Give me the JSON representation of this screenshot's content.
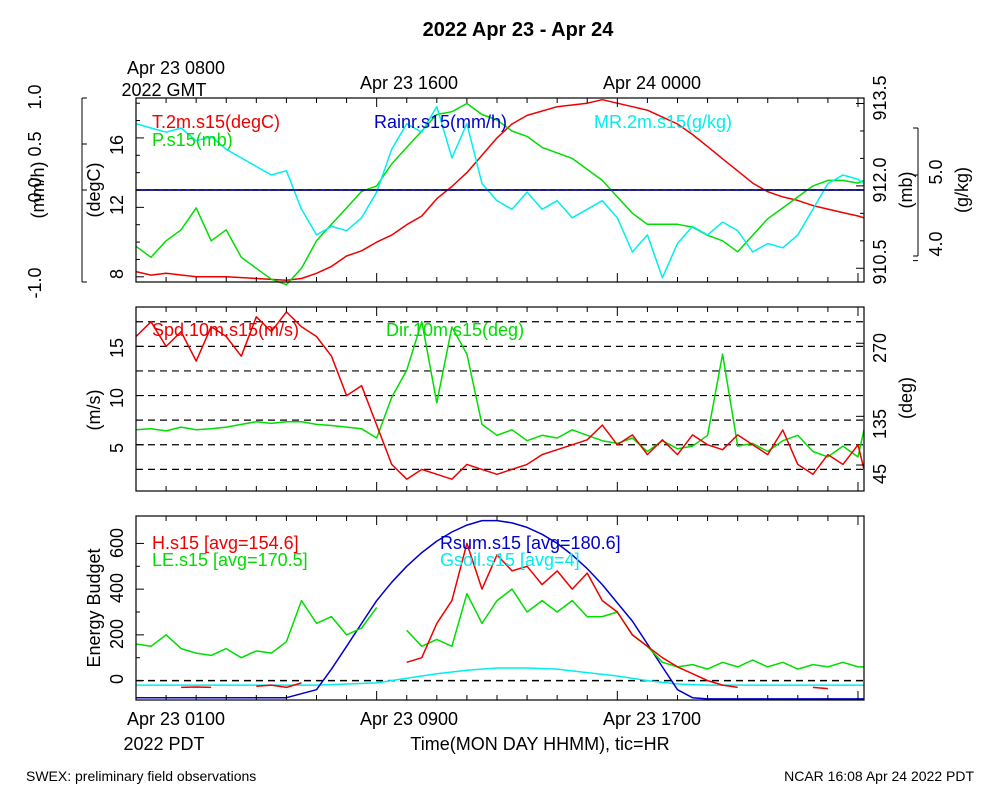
{
  "title": "2022 Apr 23 - Apr 24",
  "footer": {
    "left": "SWEX: preliminary field observations",
    "right": "NCAR 16:08 Apr 24 2022 PDT"
  },
  "time_axis": {
    "gmt_ticks": [
      {
        "hour": 0,
        "label": "Apr 23 0800"
      },
      {
        "hour": 8,
        "label": "Apr 23 1600"
      },
      {
        "hour": 16,
        "label": "Apr 24 0000"
      }
    ],
    "gmt_year_label": "2022 GMT",
    "pdt_ticks": [
      {
        "hour": 0,
        "label": "Apr 23 0100"
      },
      {
        "hour": 8,
        "label": "Apr 23 0900"
      },
      {
        "hour": 16,
        "label": "Apr 23 1700"
      }
    ],
    "pdt_year_label": "2022 PDT",
    "xlabel": "Time(MON DAY HHMM), tic=HR",
    "range_hours": [
      0,
      24.2
    ]
  },
  "colors": {
    "red": "#ee0000",
    "green": "#00dd00",
    "cyan": "#00eeee",
    "blue": "#0000cc",
    "black": "#000000"
  },
  "chart_data": [
    {
      "type": "line",
      "panel": "top",
      "axes": {
        "left_outer": {
          "label": "(mm/h)",
          "ticks": [
            "-1.0",
            "0.0",
            "0.5",
            "1.0"
          ],
          "ylim": [
            -1.0,
            1.0
          ]
        },
        "left_inner": {
          "label": "(degC)",
          "ticks": [
            "8",
            "12",
            "16"
          ],
          "ylim": [
            7.7,
            18.3
          ]
        },
        "right_inner": {
          "label": "(mb)",
          "ticks": [
            "910.5",
            "912.0",
            "913.5"
          ],
          "ylim": [
            910.25,
            913.6
          ]
        },
        "right_outer": {
          "label": "(g/kg)",
          "ticks": [
            "4.0",
            "5.0"
          ],
          "ylim": [
            3.75,
            5.9
          ]
        }
      },
      "series": [
        {
          "name": "T.2m.s15(degC)",
          "color": "red",
          "axis": "left_inner",
          "x": [
            0,
            0.5,
            1,
            2,
            3,
            4,
            5,
            5.5,
            6,
            6.5,
            7,
            7.5,
            8,
            8.5,
            9,
            9.5,
            10,
            10.5,
            11,
            11.5,
            12,
            12.5,
            13,
            14,
            15,
            15.5,
            16,
            16.5,
            17,
            17.5,
            18,
            18.5,
            19,
            19.5,
            20,
            20.5,
            21,
            21.5,
            22,
            22.5,
            23,
            23.5,
            24,
            24.2
          ],
          "y": [
            8.3,
            8.1,
            8.2,
            8.0,
            8.0,
            7.9,
            7.8,
            7.9,
            8.2,
            8.6,
            9.2,
            9.5,
            10.0,
            10.4,
            11.0,
            11.5,
            12.5,
            13.2,
            14.0,
            15.0,
            16.0,
            16.8,
            17.3,
            17.8,
            18.0,
            18.2,
            18.0,
            17.8,
            17.6,
            17.2,
            16.8,
            16.2,
            15.5,
            14.8,
            14.1,
            13.4,
            12.9,
            12.6,
            12.4,
            12.1,
            11.9,
            11.7,
            11.5,
            11.4
          ]
        },
        {
          "name": "Rainr.s15(mm/h)",
          "color": "blue",
          "axis": "left_outer",
          "x": [
            0,
            24.2
          ],
          "y": [
            0.0,
            0.0
          ]
        },
        {
          "name": "MR.2m.s15(g/kg)",
          "color": "cyan",
          "axis": "right_outer",
          "x": [
            0,
            0.5,
            1,
            1.5,
            2,
            2.5,
            3,
            3.5,
            4,
            4.5,
            5,
            5.5,
            6,
            6.5,
            7,
            7.5,
            8,
            8.5,
            9,
            9.5,
            10,
            10.5,
            11,
            11.5,
            12,
            12.5,
            13,
            13.5,
            14,
            14.5,
            15,
            15.5,
            16,
            16.5,
            17,
            17.5,
            18,
            18.5,
            19,
            19.5,
            20,
            20.5,
            21,
            21.5,
            22,
            22.5,
            23,
            23.5,
            24,
            24.2
          ],
          "y": [
            5.6,
            5.55,
            5.5,
            5.55,
            5.4,
            5.45,
            5.3,
            5.2,
            5.1,
            5.0,
            5.05,
            4.6,
            4.3,
            4.4,
            4.35,
            4.5,
            4.8,
            5.3,
            5.6,
            5.5,
            5.8,
            5.2,
            5.6,
            4.9,
            4.7,
            4.6,
            4.8,
            4.6,
            4.7,
            4.5,
            4.6,
            4.7,
            4.5,
            4.1,
            4.3,
            3.8,
            4.2,
            4.4,
            4.3,
            4.45,
            4.35,
            4.1,
            4.2,
            4.15,
            4.3,
            4.6,
            4.9,
            5.0,
            4.95,
            4.9
          ]
        },
        {
          "name": "P.s15(mb)",
          "color": "green",
          "axis": "right_inner",
          "x": [
            0,
            0.5,
            1,
            1.5,
            2,
            2.5,
            3,
            3.5,
            4,
            4.5,
            5,
            5.5,
            6,
            6.5,
            7,
            7.5,
            8,
            8.5,
            9,
            9.5,
            10,
            10.5,
            11,
            11.5,
            12,
            12.5,
            13,
            13.5,
            14,
            14.5,
            15,
            15.5,
            16,
            16.5,
            17,
            17.5,
            18,
            18.5,
            19,
            19.5,
            20,
            20.5,
            21,
            21.5,
            22,
            22.5,
            23,
            23.5,
            24,
            24.2
          ],
          "y": [
            910.9,
            910.7,
            911.0,
            911.2,
            911.6,
            911.0,
            911.2,
            910.7,
            910.5,
            910.3,
            910.2,
            910.5,
            911.0,
            911.3,
            911.6,
            911.9,
            912.0,
            912.4,
            912.7,
            913.0,
            913.3,
            913.35,
            913.5,
            913.3,
            913.2,
            913.0,
            912.9,
            912.7,
            912.6,
            912.5,
            912.3,
            912.1,
            911.8,
            911.5,
            911.3,
            911.3,
            911.3,
            911.25,
            911.1,
            911.0,
            910.8,
            911.1,
            911.4,
            911.6,
            911.8,
            912.0,
            912.1,
            912.1,
            912.05,
            912.1
          ]
        }
      ]
    },
    {
      "type": "line",
      "panel": "middle",
      "axes": {
        "left": {
          "label": "(m/s)",
          "ticks": [
            "5",
            "10",
            "15"
          ],
          "ylim": [
            0.3,
            19.0
          ]
        },
        "right": {
          "label": "(deg)",
          "ticks": [
            "45",
            "135",
            "270"
          ],
          "ylim": [
            -3,
            337
          ]
        }
      },
      "grid": "dashed",
      "series": [
        {
          "name": "Spd.10m.s15(m/s)",
          "color": "red",
          "axis": "left",
          "x": [
            0,
            0.5,
            1,
            1.5,
            2,
            2.5,
            3,
            3.5,
            4,
            4.5,
            5,
            5.5,
            6,
            6.5,
            7,
            7.5,
            8,
            8.5,
            9,
            9.5,
            10,
            10.5,
            11,
            11.5,
            12,
            12.5,
            13,
            13.5,
            14,
            14.5,
            15,
            15.5,
            16,
            16.5,
            17,
            17.5,
            18,
            18.5,
            19,
            19.5,
            20,
            20.5,
            21,
            21.5,
            22,
            22.5,
            23,
            23.5,
            24,
            24.2
          ],
          "y": [
            16.0,
            17.5,
            15.0,
            16.5,
            13.5,
            17.0,
            16.0,
            14.0,
            18.0,
            16.5,
            18.5,
            17.0,
            16.0,
            14.0,
            10.0,
            11.0,
            7.0,
            3.0,
            1.5,
            2.5,
            2.0,
            1.5,
            3.0,
            2.5,
            2.0,
            2.5,
            3.0,
            4.0,
            4.5,
            5.0,
            5.5,
            7.0,
            5.0,
            6.0,
            4.0,
            5.5,
            4.0,
            6.0,
            5.0,
            4.5,
            6.0,
            5.0,
            4.0,
            6.5,
            3.0,
            2.0,
            4.0,
            3.0,
            5.0,
            2.5
          ]
        },
        {
          "name": "Dir.10m.s15(deg)",
          "color": "green",
          "axis": "right",
          "x": [
            0,
            0.5,
            1,
            1.5,
            2,
            2.5,
            3,
            3.5,
            4,
            4.5,
            5,
            5.5,
            6,
            6.5,
            7,
            7.5,
            8,
            8.5,
            9,
            9.5,
            10,
            10.5,
            11,
            11.5,
            12,
            12.5,
            13,
            13.5,
            14,
            14.5,
            15,
            15.5,
            16,
            16.5,
            17,
            17.5,
            18,
            18.5,
            19,
            19.5,
            20,
            20.5,
            21,
            21.5,
            22,
            22.5,
            23,
            23.5,
            24,
            24.2
          ],
          "y": [
            110,
            112,
            108,
            115,
            110,
            112,
            115,
            120,
            125,
            122,
            125,
            125,
            120,
            118,
            115,
            112,
            95,
            170,
            220,
            310,
            160,
            300,
            250,
            120,
            100,
            110,
            90,
            100,
            95,
            110,
            100,
            90,
            85,
            95,
            70,
            90,
            75,
            80,
            100,
            250,
            80,
            85,
            70,
            90,
            100,
            70,
            60,
            80,
            60,
            110
          ]
        }
      ]
    },
    {
      "type": "line",
      "panel": "bottom",
      "axes": {
        "left": {
          "label": "Energy Budget",
          "ticks": [
            "0",
            "200",
            "400",
            "600"
          ],
          "ylim": [
            -85,
            720
          ]
        }
      },
      "series": [
        {
          "name": "H.s15 [avg=154.6]",
          "color": "red",
          "x": [
            1.5,
            2.0,
            2.5,
            null,
            4.0,
            4.5,
            5.0,
            5.5,
            null,
            9.0,
            9.5,
            10.0,
            10.5,
            11.0,
            11.5,
            12.0,
            12.5,
            13.0,
            13.5,
            14.0,
            14.5,
            15.0,
            15.5,
            16.0,
            16.5,
            17.0,
            17.5,
            18.0,
            18.5,
            19.0,
            19.5,
            20.0,
            null,
            22.5,
            23.0
          ],
          "y": [
            -30,
            -28,
            -30,
            null,
            -25,
            -20,
            -30,
            -10,
            null,
            80,
            100,
            250,
            350,
            600,
            400,
            550,
            480,
            500,
            420,
            480,
            400,
            470,
            350,
            300,
            200,
            150,
            100,
            60,
            30,
            0,
            -20,
            -30,
            null,
            -30,
            -35
          ]
        },
        {
          "name": "LE.s15 [avg=170.5]",
          "color": "green",
          "x": [
            0,
            0.5,
            1,
            1.5,
            2,
            2.5,
            3,
            3.5,
            4,
            4.5,
            5,
            5.5,
            6,
            6.5,
            7,
            7.5,
            8.0,
            null,
            9.0,
            9.5,
            10,
            10.5,
            11,
            11.5,
            12,
            12.5,
            13,
            13.5,
            14,
            14.5,
            15,
            15.5,
            16,
            16.5,
            17,
            17.5,
            18,
            18.5,
            19,
            19.5,
            20,
            20.5,
            21,
            21.5,
            22,
            22.5,
            23,
            23.5,
            24,
            24.2
          ],
          "y": [
            160,
            150,
            200,
            140,
            120,
            110,
            140,
            100,
            130,
            120,
            170,
            350,
            250,
            280,
            200,
            230,
            320,
            null,
            220,
            150,
            180,
            150,
            380,
            250,
            350,
            400,
            300,
            350,
            300,
            350,
            280,
            280,
            300,
            200,
            150,
            80,
            60,
            70,
            50,
            80,
            60,
            90,
            60,
            80,
            50,
            70,
            60,
            80,
            60,
            60
          ]
        },
        {
          "name": "Rsum.s15 [avg=180.6]",
          "color": "blue",
          "x": [
            0,
            1,
            2,
            3,
            4,
            5,
            6,
            6.5,
            7,
            7.5,
            8,
            8.5,
            9,
            9.5,
            10,
            10.5,
            11,
            11.5,
            12,
            12.5,
            13,
            13.5,
            14,
            14.5,
            15,
            15.5,
            16,
            16.5,
            17,
            17.5,
            18,
            18.5,
            19,
            19.5,
            20,
            21,
            22,
            23,
            24,
            24.2
          ],
          "y": [
            -75,
            -75,
            -75,
            -75,
            -75,
            -75,
            -40,
            50,
            150,
            250,
            350,
            430,
            500,
            560,
            610,
            650,
            680,
            700,
            700,
            690,
            670,
            640,
            600,
            550,
            490,
            420,
            340,
            260,
            160,
            60,
            -40,
            -75,
            -80,
            -80,
            -80,
            -80,
            -80,
            -80,
            -80,
            -80
          ]
        },
        {
          "name": "Gsoil.s15 [avg=4]",
          "color": "cyan",
          "x": [
            0,
            2,
            4,
            6,
            7,
            8,
            9,
            10,
            11,
            12,
            13,
            14,
            15,
            16,
            17,
            18,
            19,
            20,
            21,
            22,
            23,
            24,
            24.2
          ],
          "y": [
            -20,
            -20,
            -20,
            -20,
            -15,
            -10,
            10,
            30,
            45,
            55,
            55,
            50,
            35,
            20,
            0,
            -15,
            -20,
            -20,
            -20,
            -20,
            -20,
            -20,
            -20
          ]
        }
      ]
    }
  ]
}
